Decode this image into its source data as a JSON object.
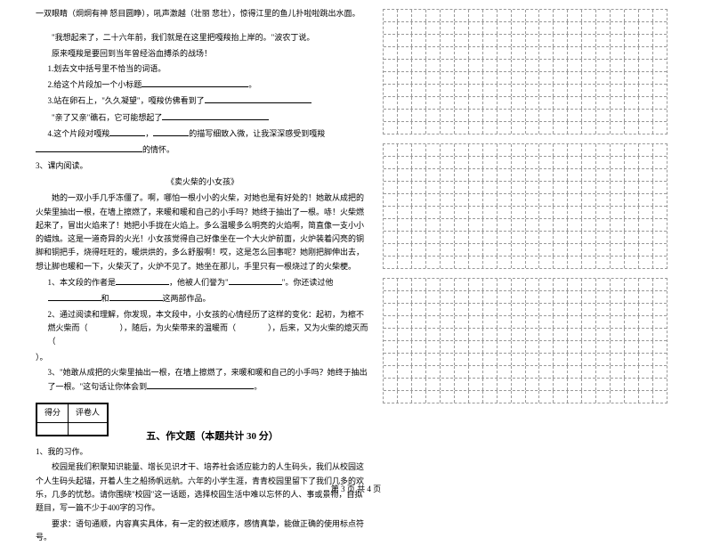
{
  "passage1": {
    "line1": "一双眼睛（炯炯有神  怒目圆睁），吼声激越（壮丽  悲壮），惊得江里的鱼儿扑啦啦跳出水面。",
    "line2": "\"我想起来了，二十六年前，我们就是在这里把嘎羧抬上岸的。\"波农丁说。",
    "line3": "原来嘎羧是要回到当年曾经浴血搏杀的战场！",
    "q1": "1.划去文中括号里不恰当的词语。",
    "q2": "2.给这个片段加一个小标题",
    "q3_a": "3.站在卵石上，\"久久凝望\"，嘎羧仿佛看到了",
    "q3_b": "\"亲了又亲\"礁石，它可能想起了",
    "q4_a": "4.这个片段对嘎羧",
    "q4_b": "，",
    "q4_c": "的描写细致入微，让我深深感受到嘎羧",
    "q4_d": "的情怀。"
  },
  "passage2": {
    "header": "3、课内阅读。",
    "title": "《卖火柴的小女孩》",
    "body": "　　她的一双小手几乎冻僵了。啊，哪怕一根小小的火柴，对她也是有好处的！她敢从成把的火柴里抽出一根，在墙上擦燃了，来暖和暖和自己的小手吗？她终于抽出了一根。哧！火柴燃起来了，冒出火焰来了！她把小手拢在火焰上。多么温暖多么明亮的火焰啊，简直像一支小小的蜡烛。这是一道奇异的火光！小女孩觉得自己好像坐在一个大火炉前面，火炉装着闪亮的铜脚和铜把手，烧得旺旺的，暖烘烘的，多么舒服啊！哎，这是怎么回事呢？她刚把脚伸出去，想让脚也暖和一下，火柴灭了，火炉不见了。她坐在那儿，手里只有一根烧过了的火柴梗。",
    "q1_a": "1、本文段的作者是",
    "q1_b": "，他被人们誉为\"",
    "q1_c": "\"。你还读过他",
    "q1_d": "和",
    "q1_e": "这两部作品。",
    "q2_a": "2、通过阅读和理解，你发现，本文段中，小女孩的心情经历了这样的变化：起初，为檫不燃火柴而（　　　　），随后，为火柴带来的温暖而（　　　　），后来，又为火柴的熄灭而（　　",
    "q2_b": "）。",
    "q3_a": "3、\"她敢从成把的火柴里抽出一根，在墙上擦燃了，来暖和暖和自己的小手吗？她终于抽出了一根。\"这句话让你体会到",
    "q3_b": "。"
  },
  "section5": {
    "score_label1": "得分",
    "score_label2": "评卷人",
    "title": "五、作文题（本题共计 30 分）",
    "q_num": "1、我的习作。",
    "body1": "　　校园是我们积聚知识能量、增长见识才干、培养社会适应能力的人生码头，我们从校园这个人生码头起锚，开着人生之船扬帆远航。六年的小学生涯，青青校园里留下了我们几多的欢乐，几多的忧愁。请你围绕\"校园\"这一话题，选择校园生活中难以忘怀的人、事或景物，自拟题目，写一篇不少于400字的习作。",
    "body2": "　　要求：语句通顺，内容真实具体，有一定的叙述顺序，感情真挚，能做正确的使用标点符号。"
  },
  "grids": {
    "cols": 20,
    "block1_rows": 10,
    "block2_rows": 10,
    "block3_rows": 10
  },
  "footer": "第 3 页 共 4 页"
}
